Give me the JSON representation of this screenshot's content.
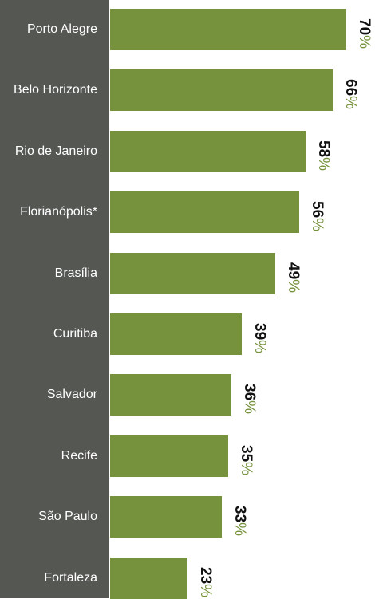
{
  "chart_data": {
    "type": "bar",
    "orientation": "horizontal",
    "categories": [
      "Porto Alegre",
      "Belo Horizonte",
      "Rio de Janeiro",
      "Florianópolis*",
      "Brasília",
      "Curitiba",
      "Salvador",
      "Recife",
      "São Paulo",
      "Fortaleza"
    ],
    "values": [
      70,
      66,
      58,
      56,
      49,
      39,
      36,
      35,
      33,
      23
    ],
    "value_suffix": "%",
    "xlim": [
      0,
      100
    ],
    "bar_color": "#76923c",
    "label_panel_color": "#555753",
    "title": "",
    "xlabel": "",
    "ylabel": ""
  }
}
